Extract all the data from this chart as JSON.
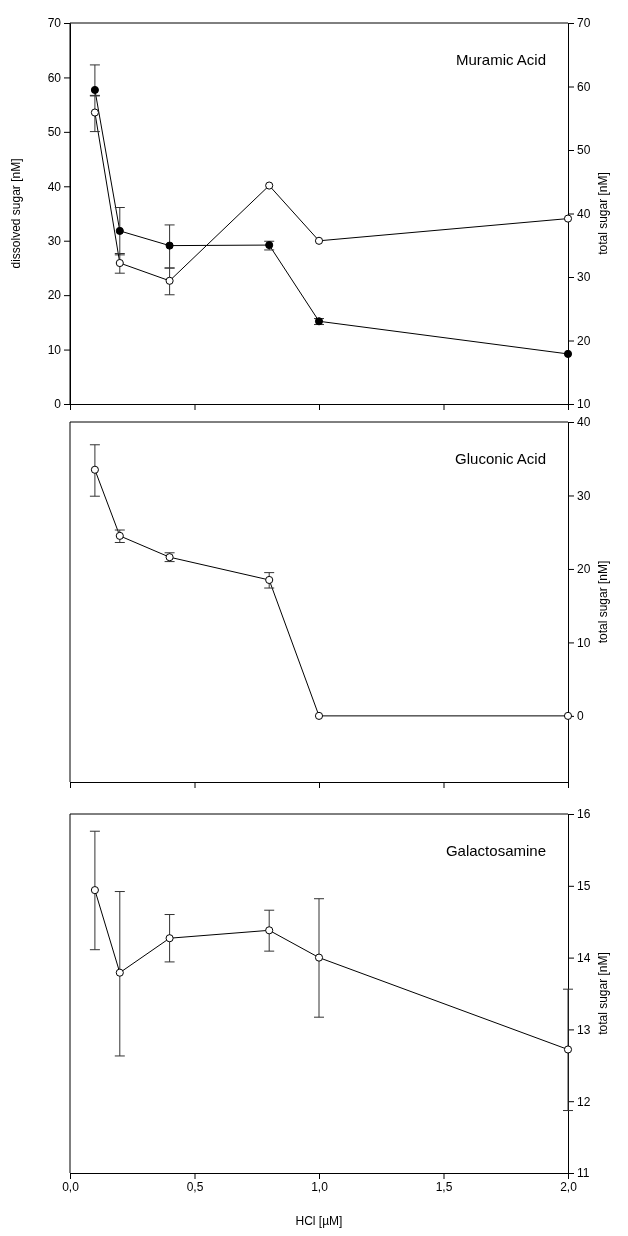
{
  "chart_data": [
    {
      "type": "line",
      "title": "Muramic Acid",
      "ylabel": "dissolved sugar [nM]",
      "y2label": "total sugar [nM]",
      "x": [
        0.1,
        0.2,
        0.4,
        0.8,
        1.0,
        2.0
      ],
      "series": [
        {
          "color": "#000000",
          "axis": "y",
          "values": [
            57.7,
            31.8,
            29.1,
            29.2,
            15.2,
            9.2
          ],
          "errors": [
            [
              56.6,
              62.3
            ],
            [
              27.4,
              36.1
            ],
            [
              25.0,
              32.9
            ],
            [
              28.3,
              29.9
            ],
            [
              14.6,
              15.7
            ],
            null
          ]
        },
        {
          "color": "#ffffff",
          "axis": "y2",
          "values": [
            55.9,
            32.2,
            29.4,
            44.4,
            35.7,
            39.2
          ],
          "errors": [
            [
              52.9,
              58.6
            ],
            [
              30.6,
              33.7
            ],
            [
              27.2,
              31.4
            ],
            null,
            null,
            null
          ]
        }
      ],
      "xlim": [
        0,
        2
      ],
      "xticks": [
        0,
        0.5,
        1,
        1.5,
        2
      ],
      "ylim": [
        0,
        70
      ],
      "yticks": [
        0,
        10,
        20,
        30,
        40,
        50,
        60,
        70
      ],
      "y2lim": [
        10,
        70
      ],
      "y2ticks": [
        10,
        20,
        30,
        40,
        50,
        60,
        70
      ],
      "tick_labels": "y",
      "marker": "circle",
      "line_style": "solid",
      "grid": false
    },
    {
      "type": "line",
      "title": "Gluconic Acid",
      "y2label": "total sugar [nM]",
      "x": [
        0.1,
        0.2,
        0.4,
        0.8,
        1.0,
        2.0
      ],
      "series": [
        {
          "color": "#ffffff",
          "axis": "y2",
          "values": [
            33.5,
            24.5,
            21.6,
            18.5,
            0,
            0
          ],
          "errors": [
            [
              29.9,
              36.9
            ],
            [
              23.6,
              25.3
            ],
            [
              21.0,
              22.2
            ],
            [
              17.4,
              19.5
            ],
            null,
            null
          ]
        }
      ],
      "xlim": [
        0,
        2
      ],
      "xticks": [
        0,
        0.5,
        1,
        1.5,
        2
      ],
      "y2lim": [
        -9,
        40
      ],
      "y2ticks": [
        0,
        10,
        20,
        30,
        40
      ],
      "tick_labels": "y",
      "marker": "circle",
      "line_style": "solid",
      "grid": false
    },
    {
      "type": "line",
      "title": "Galactosamine",
      "xlabel": "HCl [µM]",
      "y2label": "total sugar [nM]",
      "x": [
        0.1,
        0.2,
        0.4,
        0.8,
        1.0,
        2.0
      ],
      "series": [
        {
          "color": "#ffffff",
          "axis": "y2",
          "values": [
            14.94,
            13.79,
            14.27,
            14.38,
            14.0,
            12.72
          ],
          "errors": [
            [
              14.11,
              15.76
            ],
            [
              12.63,
              14.92
            ],
            [
              13.94,
              14.6
            ],
            [
              14.09,
              14.66
            ],
            [
              13.17,
              14.82
            ],
            [
              11.87,
              13.56
            ]
          ]
        }
      ],
      "xlim": [
        0,
        2
      ],
      "xticks": [
        {
          "value": 0,
          "label": "0,0"
        },
        {
          "value": 0.5,
          "label": "0,5"
        },
        {
          "value": 1,
          "label": "1,0"
        },
        {
          "value": 1.5,
          "label": "1,5"
        },
        {
          "value": 2,
          "label": "2,0"
        }
      ],
      "y2lim": [
        11,
        16
      ],
      "y2ticks": [
        11,
        12,
        13,
        14,
        15,
        16
      ],
      "marker": "circle",
      "line_style": "solid",
      "grid": false
    }
  ]
}
